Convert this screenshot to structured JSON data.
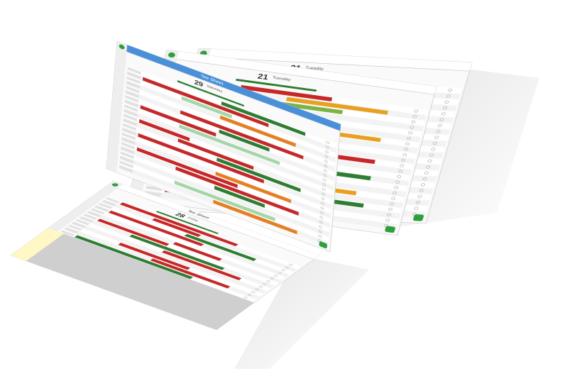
{
  "screens": [
    {
      "date": "21",
      "day": "Tuesday"
    },
    {
      "date": "21",
      "day": "Tuesday"
    },
    {
      "title": "Tee Sheet",
      "date": "29",
      "day": "Saturday"
    },
    {
      "title": "Tee Sheet",
      "date": "28",
      "day": "Friday"
    }
  ]
}
